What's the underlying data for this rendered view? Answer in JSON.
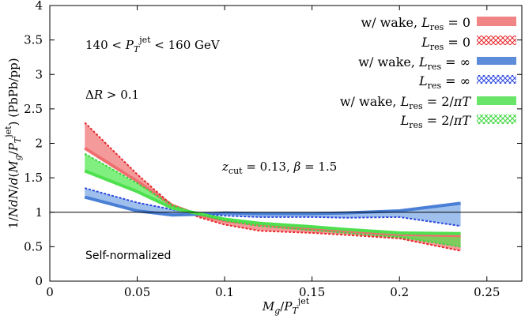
{
  "chart_data": {
    "type": "area",
    "xlabel": "M_g/P_T^jet",
    "ylabel": "1/NdN/d(M_g/P_T^jet) (PbPb/pp)",
    "xlim": [
      0,
      0.27
    ],
    "ylim": [
      0,
      4
    ],
    "x_ticks": [
      0,
      0.05,
      0.1,
      0.15,
      0.2,
      0.25
    ],
    "y_ticks": [
      0,
      0.5,
      1,
      1.5,
      2,
      2.5,
      3,
      3.5,
      4
    ],
    "x_tick_labels": [
      "0",
      "0.05",
      "0.1",
      "0.15",
      "0.2",
      "0.25"
    ],
    "y_tick_labels": [
      "0",
      "0.5",
      "1",
      "1.5",
      "2",
      "2.5",
      "3",
      "3.5",
      "4"
    ],
    "reference_line_y": 1,
    "grid": false,
    "legend_position": "top-right",
    "annotations": [
      "140 < P_T^jet < 160 GeV",
      "ΔR > 0.1",
      "z_cut = 0.13, β = 1.5",
      "Self-normalized"
    ],
    "x": [
      0.02,
      0.05,
      0.07,
      0.085,
      0.1,
      0.12,
      0.15,
      0.17,
      0.2,
      0.235
    ],
    "series": [
      {
        "name": "w/ wake, L_res = 0",
        "color": "#ef6f6f",
        "style": "solid",
        "values": [
          1.93,
          1.45,
          1.1,
          0.96,
          0.88,
          0.82,
          0.75,
          0.72,
          0.68,
          0.66
        ]
      },
      {
        "name": "L_res = 0",
        "color": "#e8262a",
        "style": "hatched",
        "values": [
          2.3,
          1.55,
          1.1,
          0.93,
          0.82,
          0.73,
          0.7,
          0.67,
          0.62,
          0.44
        ]
      },
      {
        "name": "w/ wake, L_res = ∞",
        "color": "#4a7fd6",
        "style": "solid",
        "values": [
          1.22,
          1.02,
          0.96,
          0.97,
          0.99,
          0.98,
          0.98,
          0.99,
          1.02,
          1.13
        ]
      },
      {
        "name": "L_res = ∞",
        "color": "#2a46e0",
        "style": "hatched",
        "values": [
          1.35,
          1.14,
          1.04,
          0.98,
          0.95,
          0.93,
          0.93,
          0.92,
          0.93,
          0.8
        ]
      },
      {
        "name": "w/ wake, L_res = 2/πT",
        "color": "#4fe04f",
        "style": "solid",
        "values": [
          1.6,
          1.3,
          1.06,
          0.98,
          0.9,
          0.84,
          0.79,
          0.75,
          0.7,
          0.69
        ]
      },
      {
        "name": "L_res = 2/πT",
        "color": "#3bd63b",
        "style": "hatched",
        "values": [
          1.85,
          1.42,
          1.1,
          0.97,
          0.88,
          0.8,
          0.74,
          0.7,
          0.64,
          0.5
        ]
      }
    ]
  }
}
